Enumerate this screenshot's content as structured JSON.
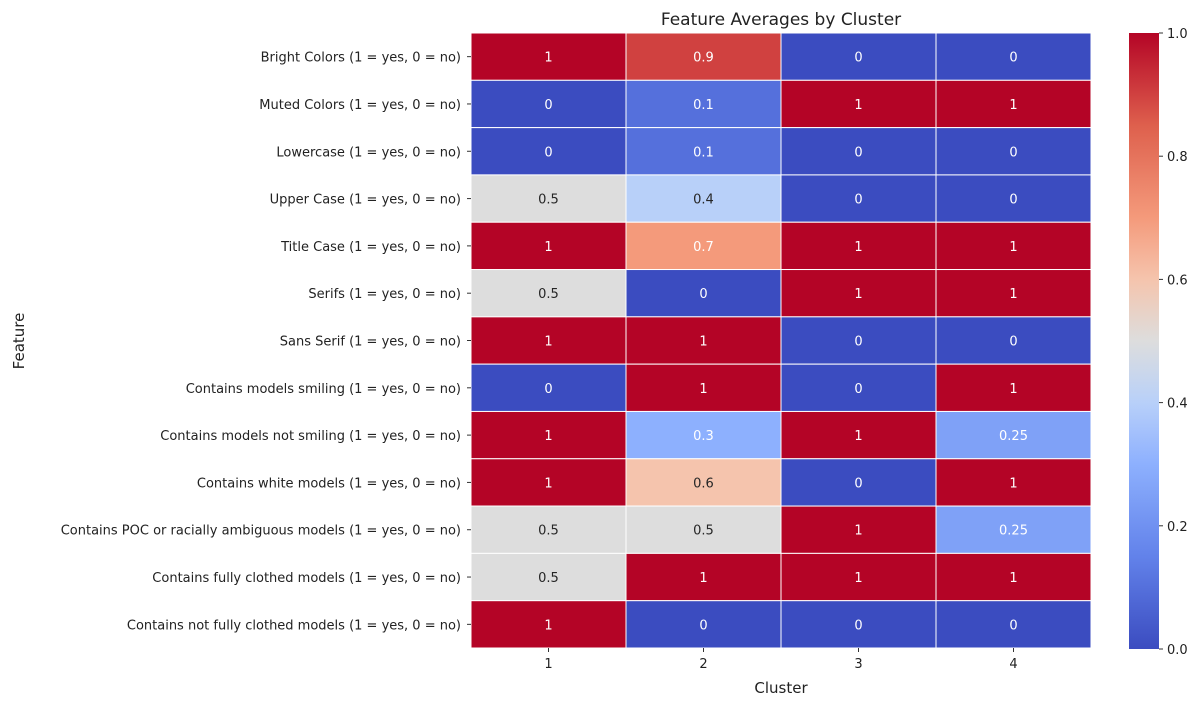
{
  "chart_data": {
    "type": "heatmap",
    "title": "Feature Averages by Cluster",
    "xlabel": "Cluster",
    "ylabel": "Feature",
    "x_categories": [
      "1",
      "2",
      "3",
      "4"
    ],
    "y_categories": [
      "Bright Colors (1 = yes, 0 = no)",
      "Muted Colors (1 = yes, 0 = no)",
      "Lowercase (1 = yes, 0 = no)",
      "Upper Case (1 = yes, 0 = no)",
      "Title Case (1 = yes, 0 = no)",
      "Serifs (1 = yes, 0 = no)",
      "Sans Serif (1 = yes, 0 = no)",
      "Contains models smiling (1 = yes, 0 = no)",
      "Contains models not smiling (1 = yes, 0 = no)",
      "Contains white models (1 = yes, 0 = no)",
      "Contains POC or racially ambiguous models (1 = yes, 0 = no)",
      "Contains fully clothed models (1 = yes, 0 = no)",
      "Contains not fully clothed models (1 = yes, 0 = no)"
    ],
    "values": [
      [
        1,
        0.9,
        0,
        0
      ],
      [
        0,
        0.1,
        1,
        1
      ],
      [
        0,
        0.1,
        0,
        0
      ],
      [
        0.5,
        0.4,
        0,
        0
      ],
      [
        1,
        0.7,
        1,
        1
      ],
      [
        0.5,
        0,
        1,
        1
      ],
      [
        1,
        1,
        0,
        0
      ],
      [
        0,
        1,
        0,
        1
      ],
      [
        1,
        0.3,
        1,
        0.25
      ],
      [
        1,
        0.6,
        0,
        1
      ],
      [
        0.5,
        0.5,
        1,
        0.25
      ],
      [
        0.5,
        1,
        1,
        1
      ],
      [
        1,
        0,
        0,
        0
      ]
    ],
    "value_labels": [
      [
        "1",
        "0.9",
        "0",
        "0"
      ],
      [
        "0",
        "0.1",
        "1",
        "1"
      ],
      [
        "0",
        "0.1",
        "0",
        "0"
      ],
      [
        "0.5",
        "0.4",
        "0",
        "0"
      ],
      [
        "1",
        "0.7",
        "1",
        "1"
      ],
      [
        "0.5",
        "0",
        "1",
        "1"
      ],
      [
        "1",
        "1",
        "0",
        "0"
      ],
      [
        "0",
        "1",
        "0",
        "1"
      ],
      [
        "1",
        "0.3",
        "1",
        "0.25"
      ],
      [
        "1",
        "0.6",
        "0",
        "1"
      ],
      [
        "0.5",
        "0.5",
        "1",
        "0.25"
      ],
      [
        "0.5",
        "1",
        "1",
        "1"
      ],
      [
        "1",
        "0",
        "0",
        "0"
      ]
    ],
    "colorscale": "coolwarm",
    "colorbar": {
      "range": [
        0,
        1
      ],
      "ticks": [
        0,
        0.2,
        0.4,
        0.6,
        0.8,
        1.0
      ],
      "tick_labels": [
        "0.0",
        "0.2",
        "0.4",
        "0.6",
        "0.8",
        "1.0"
      ]
    }
  }
}
